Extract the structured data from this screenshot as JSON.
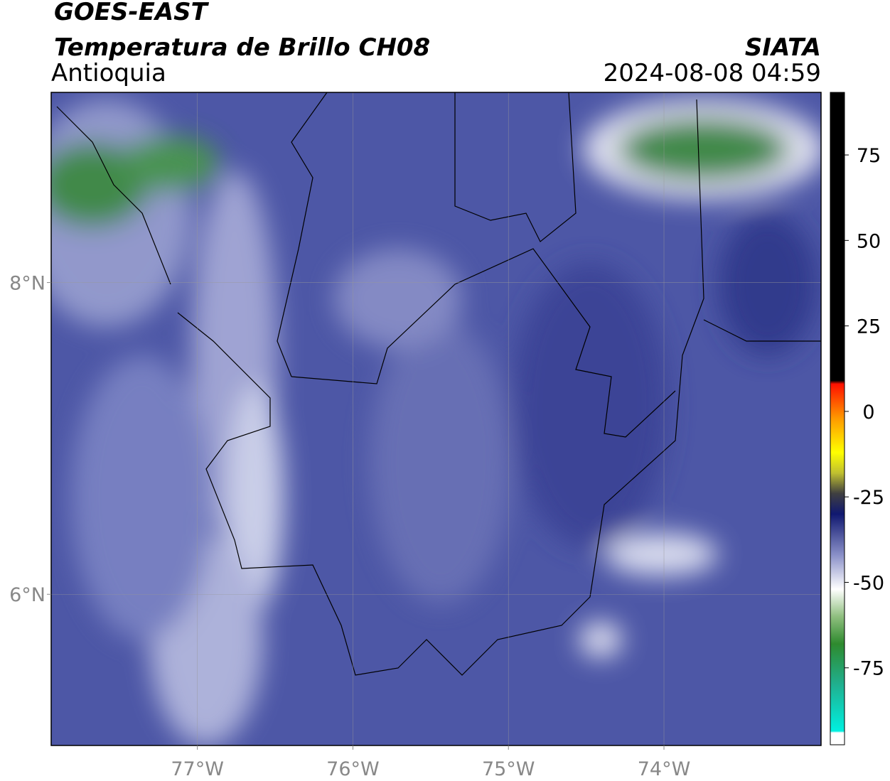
{
  "header": {
    "title": "GOES-EAST",
    "subtitle": "Temperatura de Brillo CH08",
    "region": "Antioquia",
    "source": "SIATA",
    "datetime": "2024-08-08 04:59"
  },
  "map": {
    "lonlim": [
      -77.94,
      -72.99
    ],
    "latlim": [
      5.03,
      9.22
    ],
    "lon_ticks": [
      {
        "value": -77,
        "label": "77°W"
      },
      {
        "value": -76,
        "label": "76°W"
      },
      {
        "value": -75,
        "label": "75°W"
      },
      {
        "value": -74,
        "label": "74°W"
      }
    ],
    "lat_ticks": [
      {
        "value": 8,
        "label": "8°N"
      },
      {
        "value": 6,
        "label": "6°N"
      }
    ],
    "grid": true
  },
  "colorbar": {
    "lim": [
      -97.5,
      93.3
    ],
    "ticks": [
      75,
      50,
      25,
      0,
      -25,
      -50,
      -75
    ],
    "colorscale": [
      {
        "value": -97.5,
        "color": "#ffffff"
      },
      {
        "value": -94,
        "color": "#ffffff"
      },
      {
        "value": -93.5,
        "color": "#00f0e0"
      },
      {
        "value": -80,
        "color": "#20b090"
      },
      {
        "value": -68,
        "color": "#2e8a2e"
      },
      {
        "value": -60,
        "color": "#8fbf7f"
      },
      {
        "value": -52,
        "color": "#ffffff"
      },
      {
        "value": -42,
        "color": "#8a90c8"
      },
      {
        "value": -30,
        "color": "#101870"
      },
      {
        "value": -24,
        "color": "#404040"
      },
      {
        "value": -18,
        "color": "#c0c030"
      },
      {
        "value": -12,
        "color": "#ffff00"
      },
      {
        "value": -2,
        "color": "#ff9900"
      },
      {
        "value": 8,
        "color": "#ff1000"
      },
      {
        "value": 9,
        "color": "#000000"
      },
      {
        "value": 93.3,
        "color": "#000000"
      }
    ]
  }
}
